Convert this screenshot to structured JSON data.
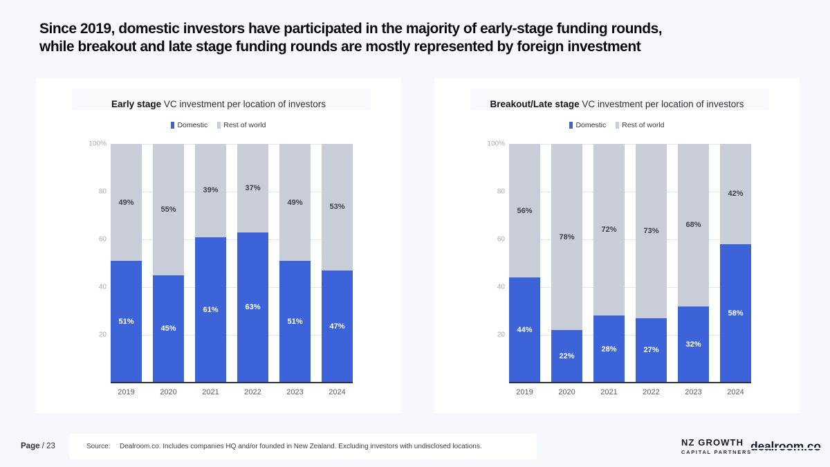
{
  "slide": {
    "title_line1": "Since 2019, domestic investors have participated in the majority of early-stage funding rounds,",
    "title_line2": "while breakout and late stage funding rounds are mostly represented by foreign investment"
  },
  "legend": {
    "domestic": "Domestic",
    "rest": "Rest of world"
  },
  "colors": {
    "domestic": "#3c63d8",
    "rest": "#c8cdd8"
  },
  "chart_data": [
    {
      "type": "bar",
      "stacked": true,
      "title_bold": "Early stage",
      "title_rest": " VC investment per location of investors",
      "categories": [
        "2019",
        "2020",
        "2021",
        "2022",
        "2023",
        "2024"
      ],
      "series": [
        {
          "name": "Domestic",
          "values": [
            51,
            45,
            61,
            63,
            51,
            47
          ]
        },
        {
          "name": "Rest of world",
          "values": [
            49,
            55,
            39,
            37,
            49,
            53
          ]
        }
      ],
      "value_suffix": "%",
      "ylim": [
        0,
        100
      ],
      "ytick_values": [
        100,
        80,
        60,
        40,
        20
      ],
      "ytick_labels": [
        "100%",
        "80",
        "60",
        "40",
        "20"
      ],
      "grid": true,
      "legend_position": "top"
    },
    {
      "type": "bar",
      "stacked": true,
      "title_bold": "Breakout/Late stage",
      "title_rest": " VC investment per location of investors",
      "categories": [
        "2019",
        "2020",
        "2021",
        "2022",
        "2023",
        "2024"
      ],
      "series": [
        {
          "name": "Domestic",
          "values": [
            44,
            22,
            28,
            27,
            32,
            58
          ]
        },
        {
          "name": "Rest of world",
          "values": [
            56,
            78,
            72,
            73,
            68,
            42
          ]
        }
      ],
      "value_suffix": "%",
      "ylim": [
        0,
        100
      ],
      "ytick_values": [
        100,
        80,
        60,
        40,
        20
      ],
      "ytick_labels": [
        "100%",
        "80",
        "60",
        "40",
        "20"
      ],
      "grid": true,
      "legend_position": "top"
    }
  ],
  "footer": {
    "page_label": "Page",
    "page_number": "/ 23",
    "source_label": "Source:",
    "source_text": "Dealroom.co. Includes companies HQ and/or founded in New Zealand. Excluding investors with undisclosed locations.",
    "nz_logo_line1": "NZ GROWTH",
    "nz_logo_line2": "CAPITAL PARTNERS",
    "dealroom_logo": "dealroom.co"
  }
}
